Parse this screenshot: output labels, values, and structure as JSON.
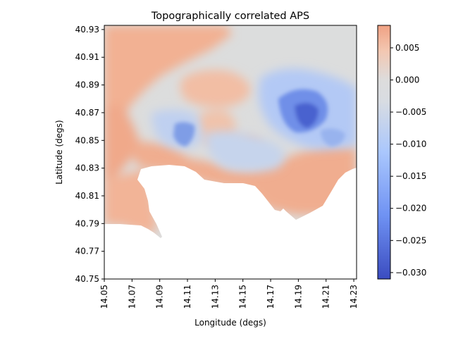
{
  "chart_data": {
    "type": "heatmap",
    "title": "Topographically correlated APS",
    "xlabel": "Longitude (degs)",
    "ylabel": "Latitude (degs)",
    "xlim": [
      14.05,
      14.232
    ],
    "ylim": [
      40.75,
      40.933
    ],
    "x_ticks": [
      "14.05",
      "14.07",
      "14.09",
      "14.11",
      "14.13",
      "14.15",
      "14.17",
      "14.19",
      "14.21",
      "14.23"
    ],
    "y_ticks": [
      "40.93",
      "40.91",
      "40.89",
      "40.87",
      "40.85",
      "40.83",
      "40.81",
      "40.79",
      "40.77",
      "40.75"
    ],
    "colormap": "coolwarm",
    "colorbar": {
      "vmin": -0.031,
      "vmax": 0.0085,
      "ticks": [
        "0.005",
        "0.000",
        "−0.005",
        "−0.010",
        "−0.015",
        "−0.020",
        "−0.025",
        "−0.030"
      ],
      "tick_values": [
        0.005,
        0.0,
        -0.005,
        -0.01,
        -0.015,
        -0.02,
        -0.025,
        -0.03
      ]
    },
    "grid": false,
    "regions": [
      {
        "name": "background",
        "value": 0.0
      },
      {
        "name": "north-west land",
        "value": 0.0055
      },
      {
        "name": "south-west land",
        "value": 0.0045
      },
      {
        "name": "south coast land",
        "value": 0.0048
      },
      {
        "name": "central warm patch",
        "value": 0.0035
      },
      {
        "name": "north-east depression",
        "value": -0.028
      },
      {
        "name": "central cool ring",
        "value": -0.012
      },
      {
        "name": "sea (no data)",
        "value": null
      }
    ]
  }
}
